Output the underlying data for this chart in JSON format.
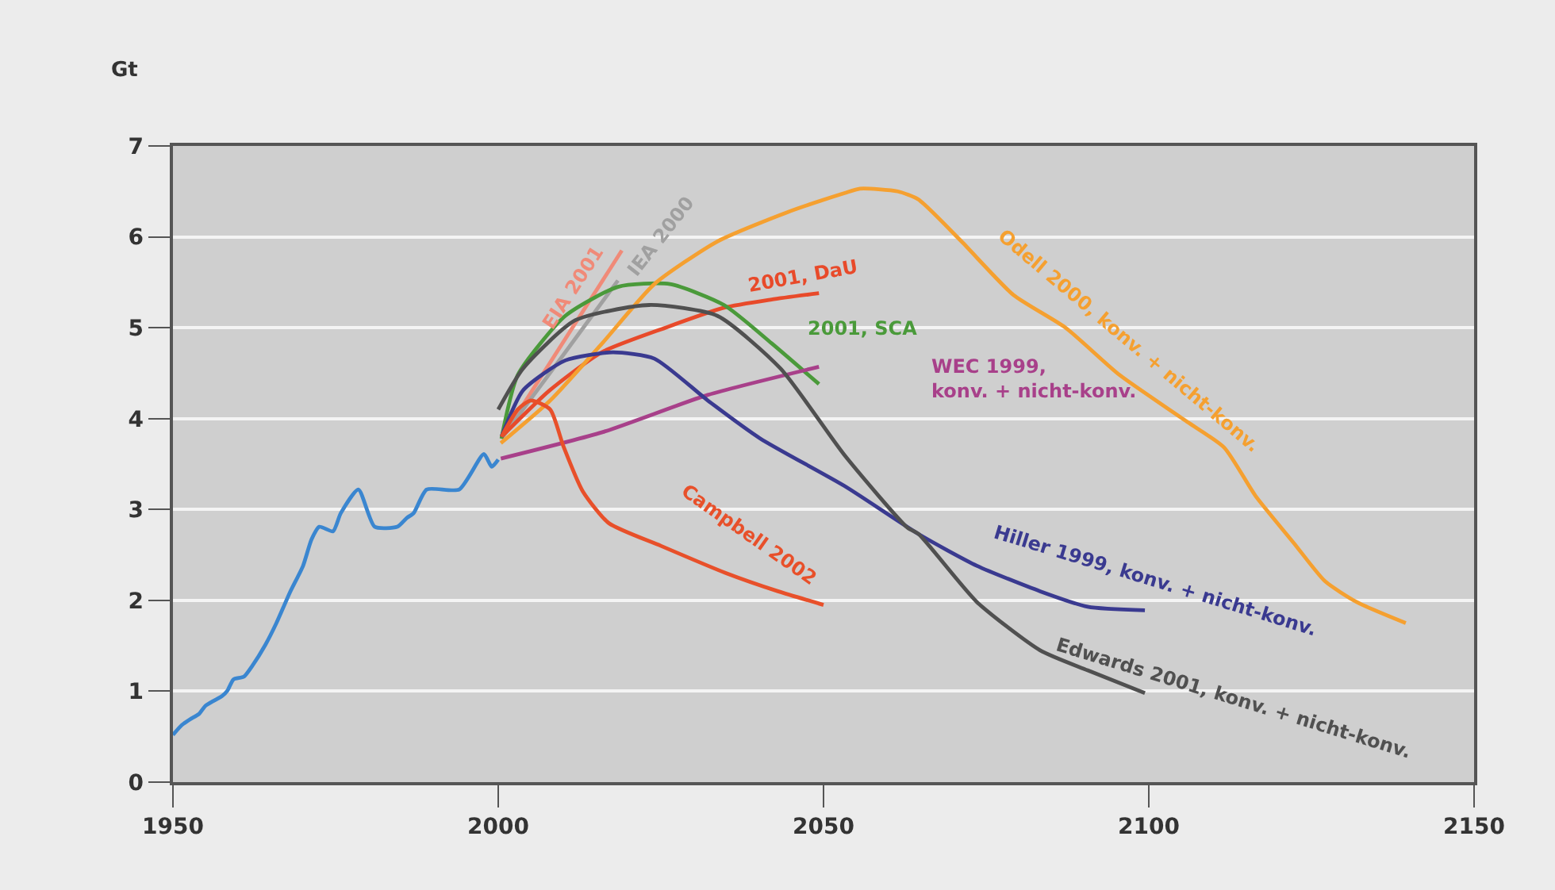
{
  "chart_data": {
    "type": "line",
    "ylabel": "Gt",
    "xlim": [
      1950,
      2150
    ],
    "xticks": [
      1950,
      2000,
      2050,
      2100,
      2150
    ],
    "ylim": [
      0,
      7
    ],
    "yticks": [
      0,
      1,
      2,
      3,
      4,
      5,
      6,
      7
    ],
    "grid": "y",
    "legend": false,
    "marker": "none",
    "line_style": "solid",
    "series": [
      {
        "color": "#3a86d0",
        "x": [
          1950,
          1951.4,
          1952.6,
          1954,
          1955,
          1956.4,
          1957.6,
          1958.4,
          1959.3,
          1960.9,
          1962.2,
          1964.2,
          1965.9,
          1968,
          1970,
          1971.3,
          1972.5,
          1974.6,
          1975.8,
          1978.5,
          1981,
          1984.5,
          1986,
          1987,
          1989,
          1994,
          1997.8,
          1999,
          2000
        ],
        "values": [
          0.52,
          0.63,
          0.69,
          0.75,
          0.84,
          0.9,
          0.95,
          1.01,
          1.13,
          1.16,
          1.28,
          1.51,
          1.75,
          2.09,
          2.38,
          2.67,
          2.81,
          2.76,
          2.96,
          3.22,
          2.81,
          2.81,
          2.91,
          2.96,
          3.22,
          3.22,
          3.61,
          3.47,
          3.55
        ]
      },
      {
        "name": "EIA 2001",
        "color": "#f08a78",
        "x": [
          2000.5,
          2019
        ],
        "values": [
          3.78,
          5.85
        ]
      },
      {
        "name": "IEA 2000",
        "color": "#a0a0a0",
        "x": [
          2000.5,
          2010,
          2018.4
        ],
        "values": [
          3.78,
          4.7,
          5.52
        ]
      },
      {
        "name": "2001, DaU",
        "color": "#e84a2a",
        "x": [
          2000.5,
          2007.9,
          2015.9,
          2025.7,
          2034.7,
          2042,
          2049.3
        ],
        "values": [
          3.8,
          4.31,
          4.73,
          5.0,
          5.22,
          5.31,
          5.38
        ]
      },
      {
        "name": "2001, SCA",
        "color": "#4a9a3a",
        "x": [
          2000.5,
          2003,
          2010.3,
          2018.4,
          2026.4,
          2034.7,
          2042,
          2049.3
        ],
        "values": [
          3.78,
          4.48,
          5.13,
          5.45,
          5.48,
          5.25,
          4.83,
          4.38
        ]
      },
      {
        "name": "WEC 1999,\nkonv. + nicht-konv.",
        "color": "#a8408a",
        "x": [
          2000.4,
          2016,
          2032.2,
          2049.3
        ],
        "values": [
          3.56,
          3.85,
          4.26,
          4.57
        ]
      },
      {
        "name": "Odell 2000, konv. + nicht-konv.",
        "color": "#f5a030",
        "x": [
          2000.4,
          2008,
          2016,
          2024,
          2033.7,
          2044.4,
          2053.2,
          2055.6,
          2061.4,
          2064.6,
          2071.2,
          2079.2,
          2087.2,
          2095.5,
          2106,
          2111.6,
          2116.4,
          2122.3,
          2127.1,
          2132,
          2139.5
        ],
        "values": [
          3.73,
          4.2,
          4.83,
          5.48,
          5.95,
          6.27,
          6.48,
          6.53,
          6.5,
          6.41,
          5.95,
          5.36,
          5.0,
          4.48,
          3.96,
          3.68,
          3.15,
          2.63,
          2.21,
          1.98,
          1.75
        ]
      },
      {
        "name": "Hiller 1999, konv. + nicht-konv.",
        "color": "#3a3a90",
        "x": [
          2000.5,
          2003.8,
          2010.3,
          2017.6,
          2024,
          2032.2,
          2040.3,
          2053.2,
          2064.6,
          2073.6,
          2083.3,
          2090.6,
          2099.4
        ],
        "values": [
          3.8,
          4.31,
          4.64,
          4.73,
          4.66,
          4.2,
          3.78,
          3.26,
          2.73,
          2.38,
          2.1,
          1.93,
          1.89
        ]
      },
      {
        "name": "Edwards 2001, konv. + nicht-konv.",
        "color": "#505050",
        "x": [
          2000,
          2003.8,
          2011.8,
          2023.2,
          2033.7,
          2043.4,
          2053.2,
          2062.9,
          2064.6,
          2073.6,
          2083.3,
          2090.6,
          2099.4
        ],
        "values": [
          4.1,
          4.55,
          5.08,
          5.25,
          5.13,
          4.55,
          3.6,
          2.8,
          2.73,
          1.98,
          1.45,
          1.23,
          0.98
        ]
      },
      {
        "name": "Campbell 2002",
        "color": "#e8502a",
        "x": [
          2000.5,
          2003,
          2005,
          2008,
          2010,
          2013,
          2017,
          2025,
          2035,
          2043,
          2050
        ],
        "values": [
          3.8,
          4.1,
          4.2,
          4.1,
          3.7,
          3.2,
          2.85,
          2.6,
          2.3,
          2.1,
          1.95
        ]
      }
    ]
  }
}
